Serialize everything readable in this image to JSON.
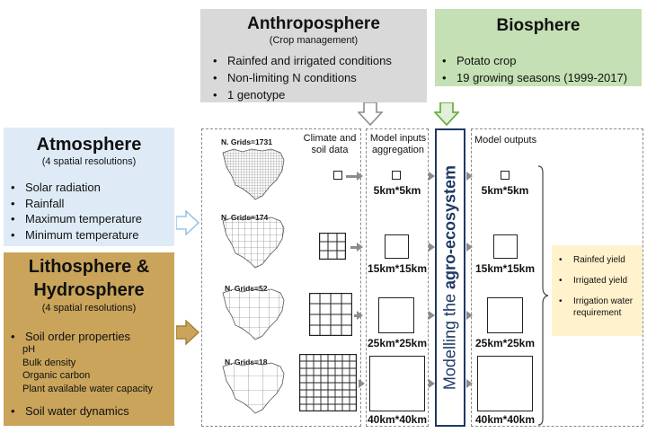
{
  "anthroposphere": {
    "title": "Anthroposphere",
    "subtitle": "(Crop management)",
    "items": [
      "Rainfed and irrigated conditions",
      "Non-limiting N conditions",
      "1 genotype"
    ]
  },
  "biosphere": {
    "title": "Biosphere",
    "items": [
      "Potato crop",
      "19 growing seasons (1999-2017)"
    ]
  },
  "atmosphere": {
    "title": "Atmosphere",
    "subtitle": "(4 spatial resolutions)",
    "items": [
      "Solar radiation",
      "Rainfall",
      "Maximum temperature",
      "Minimum temperature"
    ]
  },
  "lithosphere": {
    "title_line1": "Lithosphere &",
    "title_line2": "Hydrosphere",
    "subtitle": "(4 spatial resolutions)",
    "soil_heading": "Soil order properties",
    "soil_props": [
      "pH",
      "Bulk density",
      "Organic carbon",
      "Plant available water capacity"
    ],
    "soil_water": "Soil water dynamics"
  },
  "climate_soil": {
    "header": "Climate and soil data",
    "grids": [
      "N. Grids=1731",
      "N. Grids=174",
      "N. Grids=52",
      "N. Grids=18"
    ]
  },
  "model_inputs": {
    "header": "Model inputs aggregation",
    "resolutions": [
      "5km*5km",
      "15km*15km",
      "25km*25km",
      "40km*40km"
    ]
  },
  "modelling": {
    "prefix": "Modelling the ",
    "emphasis": "agro-ecosystem"
  },
  "model_outputs": {
    "header": "Model outputs",
    "resolutions": [
      "5km*5km",
      "15km*15km",
      "25km*25km",
      "40km*40km"
    ]
  },
  "yields": {
    "items": [
      "Rainfed yield",
      "Irrigated yield",
      "Irrigation water requirement"
    ]
  },
  "colors": {
    "anthroposphere": "#d9d9d9",
    "biosphere": "#c5e0b4",
    "atmosphere": "#deebf7",
    "lithosphere": "#c9a45a",
    "yields": "#fff2cc",
    "modelling_text": "#1f3864",
    "arrow_grey": "#8c8c8c",
    "arrow_green": "#70ad47"
  }
}
